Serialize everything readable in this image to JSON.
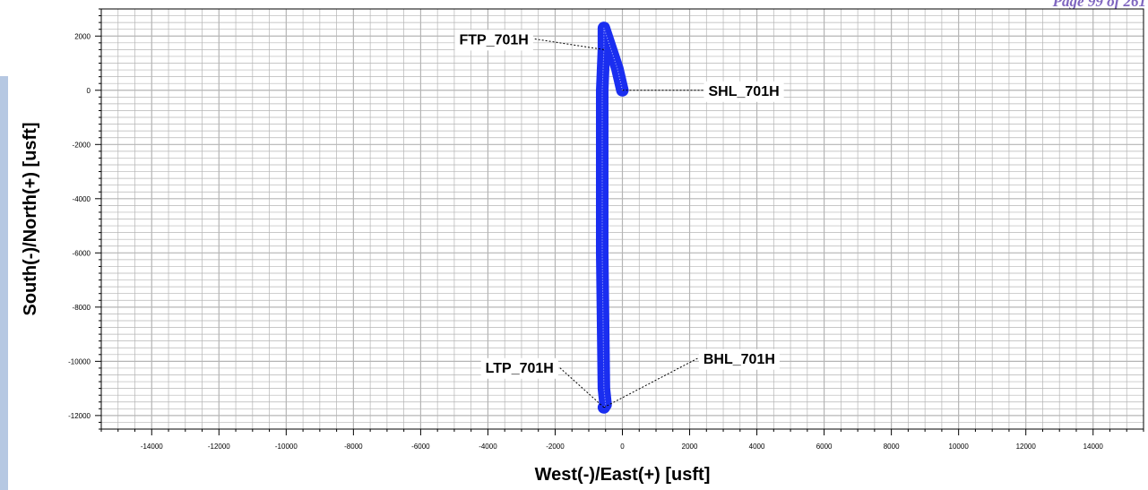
{
  "page_label": "Page 99 of 261",
  "colors": {
    "trajectory": "#1a2ef0",
    "grid": "#b5b5b5",
    "left_strip": "#b6c8e2",
    "page_label": "#7f66c0"
  },
  "chart_data": {
    "type": "line",
    "title": "",
    "xlabel": "West(-)/East(+) [usft]",
    "ylabel": "South(-)/North(+) [usft]",
    "xlim": [
      -15500,
      15500
    ],
    "ylim": [
      -12500,
      3000
    ],
    "grid": true,
    "xticks": [
      -14000,
      -12000,
      -10000,
      -8000,
      -6000,
      -4000,
      -2000,
      0,
      2000,
      4000,
      6000,
      8000,
      10000,
      12000,
      14000
    ],
    "xtick_labels": [
      "-14000",
      "-12000",
      "-10000",
      "-8000",
      "-6000",
      "-4000",
      "-2000",
      "0",
      "2000",
      "4000",
      "6000",
      "8000",
      "10000",
      "12000",
      "14000"
    ],
    "yticks": [
      2000,
      0,
      -2000,
      -4000,
      -6000,
      -8000,
      -10000,
      -12000
    ],
    "ytick_labels": [
      "2000",
      "0",
      "-2000",
      "-4000",
      "-6000",
      "-8000",
      "-10000",
      "-12000"
    ],
    "series": [
      {
        "x": [
          0,
          -150,
          -550,
          -550,
          -600,
          -600,
          -550,
          -500,
          -550
        ],
        "y": [
          0,
          800,
          2300,
          1500,
          0,
          -6000,
          -11000,
          -11600,
          -11700
        ]
      }
    ],
    "annotations": [
      {
        "text": "FTP_701H",
        "x": -550,
        "y": 1500
      },
      {
        "text": "SHL_701H",
        "x": 0,
        "y": 0
      },
      {
        "text": "LTP_701H",
        "x": -550,
        "y": -11700
      },
      {
        "text": "BHL_701H",
        "x": -550,
        "y": -11700
      }
    ]
  }
}
